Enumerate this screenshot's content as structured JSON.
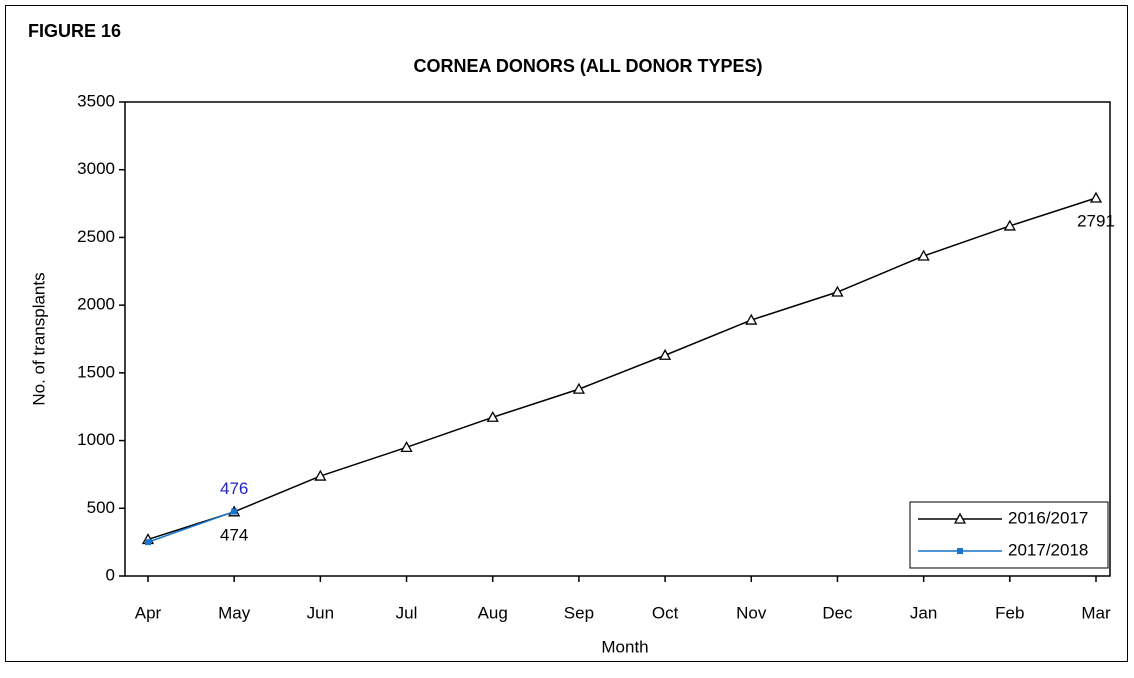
{
  "chart_data": {
    "type": "line",
    "figure_label": "FIGURE 16",
    "title": "CORNEA DONORS (ALL DONOR TYPES)",
    "x_label": "Month",
    "y_label": "No. of transplants",
    "categories": [
      "Apr",
      "May",
      "Jun",
      "Jul",
      "Aug",
      "Sep",
      "Oct",
      "Nov",
      "Dec",
      "Jan",
      "Feb",
      "Mar"
    ],
    "series": [
      {
        "name": "2016/2017",
        "color": "#000000",
        "marker": "triangle",
        "values": [
          270,
          474,
          738,
          950,
          1172,
          1380,
          1630,
          1890,
          2097,
          2363,
          2585,
          2791
        ]
      },
      {
        "name": "2017/2018",
        "color": "#1874cd",
        "marker": "square",
        "values": [
          250,
          476,
          null,
          null,
          null,
          null,
          null,
          null,
          null,
          null,
          null,
          null
        ]
      }
    ],
    "ylim": [
      0,
      3500
    ],
    "yticks": [
      0,
      500,
      1000,
      1500,
      2000,
      2500,
      3000,
      3500
    ],
    "legend": "lower right"
  }
}
